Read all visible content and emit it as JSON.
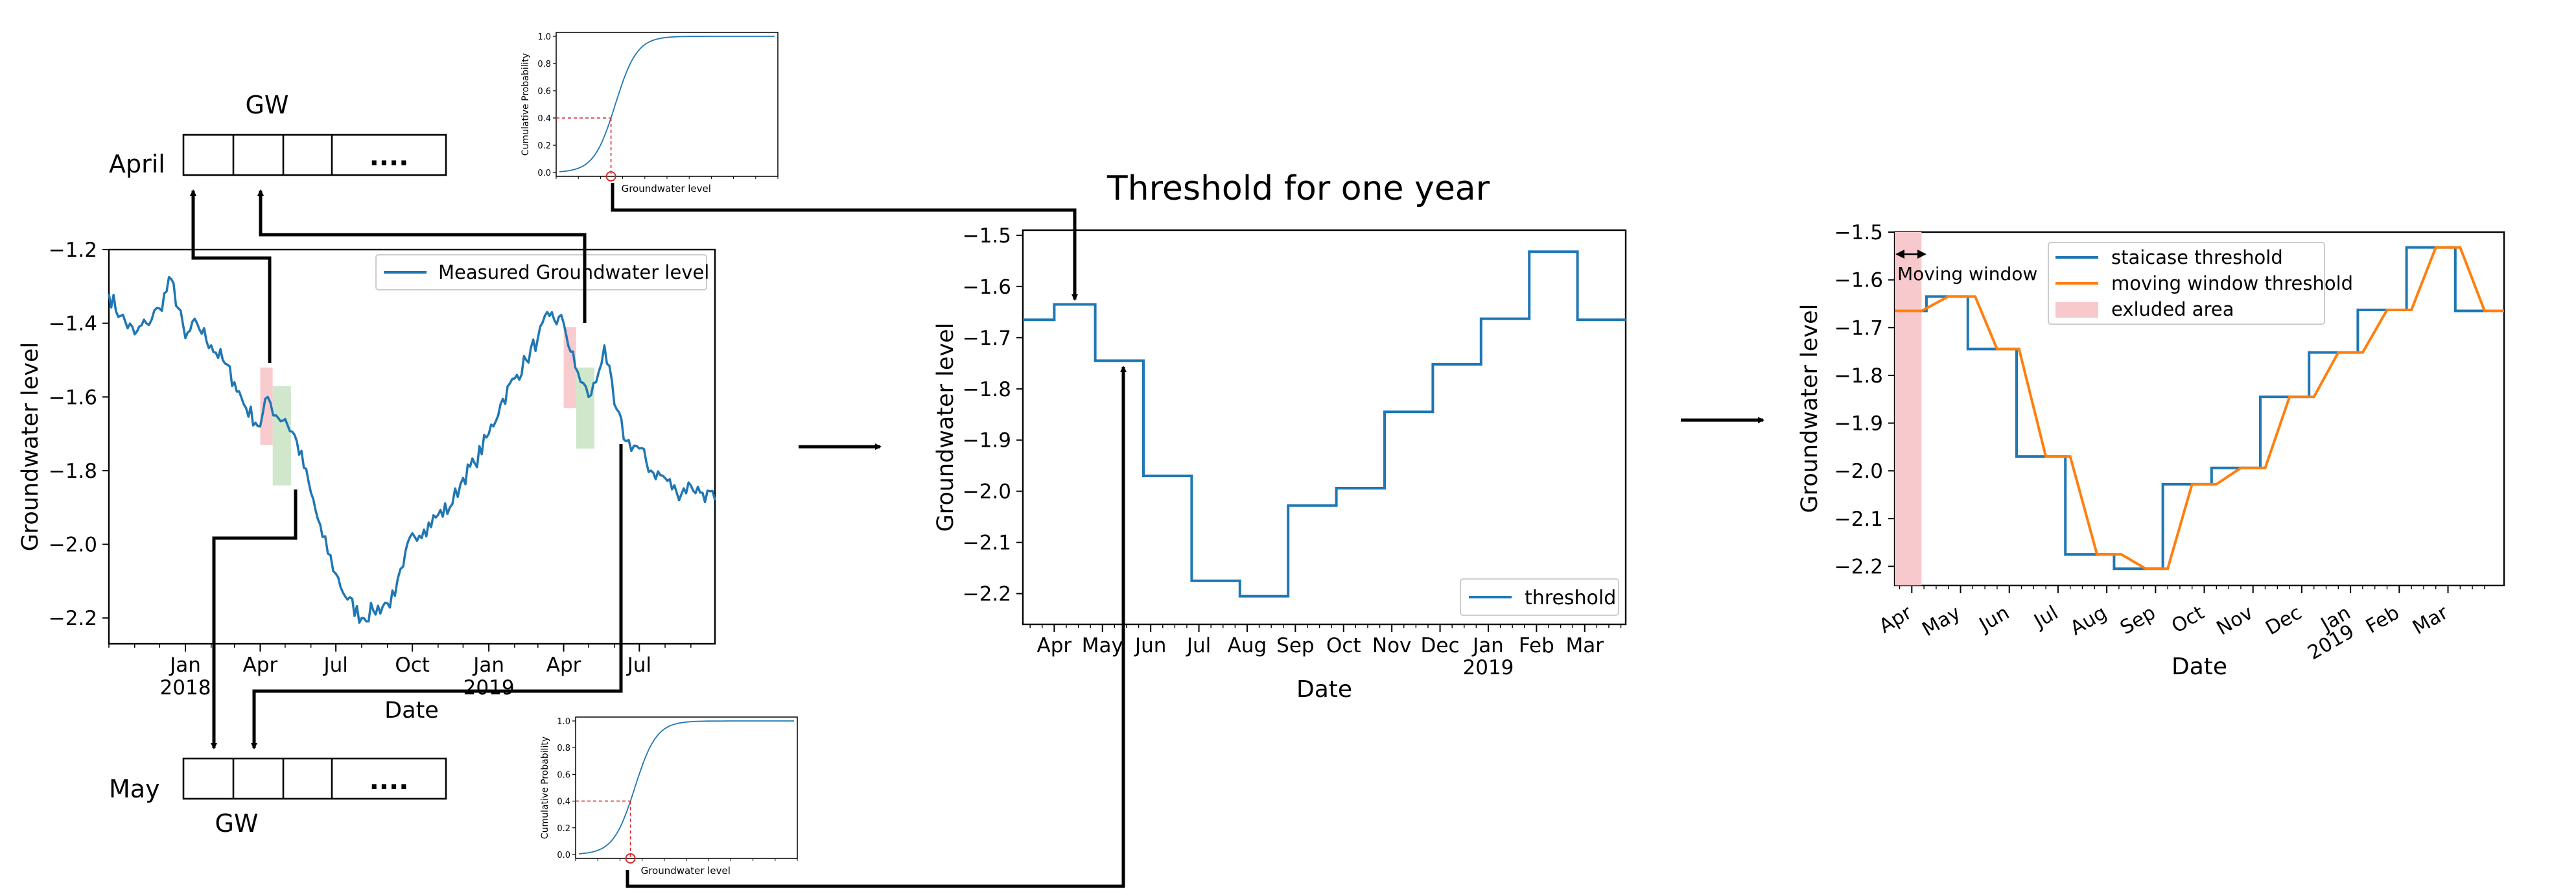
{
  "colors": {
    "blue": "#1f77b4",
    "orange": "#ff7f0e",
    "pink": "#f8c9cc",
    "green": "#cde6c8",
    "red": "#d62728",
    "black": "#000000"
  },
  "labels": {
    "april": "April",
    "may": "May",
    "gw_top": "GW",
    "gw_bottom": "GW",
    "dots": "....",
    "cdf_ylabel": "Cumulative Probability",
    "cdf_xlabel": "Groundwater level"
  },
  "cdf": {
    "yticks": [
      "0.0",
      "0.2",
      "0.4",
      "0.6",
      "0.8",
      "1.0"
    ],
    "marker_level": 0.4
  },
  "chart_data": [
    {
      "id": "measured",
      "type": "line",
      "legend": [
        "Measured Groundwater level"
      ],
      "xlabel": "Date",
      "ylabel": "Groundwater level",
      "ylim": [
        -2.27,
        -1.2
      ],
      "yticks": [
        -2.2,
        -2.0,
        -1.8,
        -1.6,
        -1.4,
        -1.2
      ],
      "ytick_labels": [
        "−2.2",
        "−2.0",
        "−1.8",
        "−1.6",
        "−1.4",
        "−1.2"
      ],
      "xlim": [
        "2017-10-01",
        "2019-09-30"
      ],
      "xticks": [
        {
          "date": "2018-01-01",
          "label": "Jan",
          "label2": "2018"
        },
        {
          "date": "2018-04-01",
          "label": "Apr"
        },
        {
          "date": "2018-07-01",
          "label": "Jul"
        },
        {
          "date": "2018-10-01",
          "label": "Oct"
        },
        {
          "date": "2019-01-01",
          "label": "Jan",
          "label2": "2019"
        },
        {
          "date": "2019-04-01",
          "label": "Apr"
        },
        {
          "date": "2019-07-01",
          "label": "Jul"
        }
      ],
      "series": [
        {
          "name": "Measured Groundwater level",
          "x": [
            "2017-10-01",
            "2017-10-15",
            "2017-11-01",
            "2017-11-15",
            "2017-12-01",
            "2017-12-15",
            "2018-01-01",
            "2018-01-15",
            "2018-02-01",
            "2018-02-15",
            "2018-03-01",
            "2018-03-15",
            "2018-04-01",
            "2018-04-10",
            "2018-04-20",
            "2018-05-01",
            "2018-05-15",
            "2018-06-01",
            "2018-06-15",
            "2018-07-01",
            "2018-07-15",
            "2018-08-01",
            "2018-08-15",
            "2018-09-01",
            "2018-09-10",
            "2018-09-20",
            "2018-10-01",
            "2018-10-15",
            "2018-11-01",
            "2018-11-15",
            "2018-12-01",
            "2018-12-15",
            "2019-01-01",
            "2019-01-15",
            "2019-02-01",
            "2019-02-15",
            "2019-03-01",
            "2019-03-15",
            "2019-04-01",
            "2019-04-15",
            "2019-05-01",
            "2019-05-10",
            "2019-05-20",
            "2019-06-01",
            "2019-06-15",
            "2019-07-01",
            "2019-07-15",
            "2019-08-01",
            "2019-08-15",
            "2019-09-01",
            "2019-09-15",
            "2019-09-30"
          ],
          "values": [
            -1.32,
            -1.38,
            -1.43,
            -1.4,
            -1.36,
            -1.28,
            -1.44,
            -1.4,
            -1.46,
            -1.5,
            -1.56,
            -1.63,
            -1.68,
            -1.6,
            -1.65,
            -1.66,
            -1.72,
            -1.86,
            -1.98,
            -2.08,
            -2.15,
            -2.2,
            -2.18,
            -2.16,
            -2.14,
            -2.06,
            -1.97,
            -1.96,
            -1.92,
            -1.9,
            -1.82,
            -1.78,
            -1.7,
            -1.62,
            -1.55,
            -1.5,
            -1.44,
            -1.38,
            -1.4,
            -1.52,
            -1.6,
            -1.56,
            -1.46,
            -1.62,
            -1.72,
            -1.74,
            -1.8,
            -1.82,
            -1.86,
            -1.84,
            -1.86,
            -1.88
          ]
        }
      ],
      "highlights": [
        {
          "kind": "excluded",
          "x": [
            "2018-04-01",
            "2018-04-16"
          ],
          "y": [
            -1.73,
            -1.52
          ]
        },
        {
          "kind": "window",
          "x": [
            "2018-04-16",
            "2018-05-08"
          ],
          "y": [
            -1.84,
            -1.57
          ]
        },
        {
          "kind": "excluded",
          "x": [
            "2019-04-01",
            "2019-04-16"
          ],
          "y": [
            -1.63,
            -1.41
          ]
        },
        {
          "kind": "window",
          "x": [
            "2019-04-16",
            "2019-05-08"
          ],
          "y": [
            -1.74,
            -1.52
          ]
        }
      ]
    },
    {
      "id": "threshold",
      "type": "line",
      "title": "Threshold for one year",
      "legend": [
        "threshold"
      ],
      "xlabel": "Date",
      "ylabel": "Groundwater level",
      "ylim": [
        -2.26,
        -1.49
      ],
      "yticks": [
        -2.2,
        -2.1,
        -2.0,
        -1.9,
        -1.8,
        -1.7,
        -1.6,
        -1.5
      ],
      "ytick_labels": [
        "−2.2",
        "−2.1",
        "−2.0",
        "−1.9",
        "−1.8",
        "−1.7",
        "−1.6",
        "−1.5"
      ],
      "xlim": [
        0,
        12.5
      ],
      "xticks": [
        {
          "x": 0.65,
          "label": "Apr"
        },
        {
          "x": 1.65,
          "label": "May"
        },
        {
          "x": 2.65,
          "label": "Jun"
        },
        {
          "x": 3.65,
          "label": "Jul"
        },
        {
          "x": 4.65,
          "label": "Aug"
        },
        {
          "x": 5.65,
          "label": "Sep"
        },
        {
          "x": 6.65,
          "label": "Oct"
        },
        {
          "x": 7.65,
          "label": "Nov"
        },
        {
          "x": 8.65,
          "label": "Dec"
        },
        {
          "x": 9.65,
          "label": "Jan",
          "label2": "2019"
        },
        {
          "x": 10.65,
          "label": "Feb"
        },
        {
          "x": 11.65,
          "label": "Mar"
        }
      ],
      "series": [
        {
          "name": "threshold",
          "step_edges": [
            0,
            0.65,
            1.5,
            2.5,
            3.5,
            4.5,
            5.5,
            6.5,
            7.5,
            8.5,
            9.5,
            10.5,
            11.5,
            12.5
          ],
          "values": [
            -1.665,
            -1.635,
            -1.745,
            -1.97,
            -2.175,
            -2.205,
            -2.028,
            -1.994,
            -1.845,
            -1.752,
            -1.663,
            -1.532,
            -1.665
          ]
        }
      ]
    },
    {
      "id": "moving",
      "type": "line",
      "legend": [
        "staicase threshold",
        "moving window threshold",
        "exluded area"
      ],
      "annotation": "Moving window",
      "xlabel": "Date",
      "ylabel": "Groundwater level",
      "ylim": [
        -2.24,
        -1.5
      ],
      "yticks": [
        -2.2,
        -2.1,
        -2.0,
        -1.9,
        -1.8,
        -1.7,
        -1.6,
        -1.5
      ],
      "ytick_labels": [
        "−2.2",
        "−2.1",
        "−2.0",
        "−1.9",
        "−1.8",
        "−1.7",
        "−1.6",
        "−1.5"
      ],
      "xlim": [
        0,
        12.5
      ],
      "xticks": [
        {
          "x": 0.35,
          "label": "Apr"
        },
        {
          "x": 1.35,
          "label": "May"
        },
        {
          "x": 2.35,
          "label": "Jun"
        },
        {
          "x": 3.35,
          "label": "Jul"
        },
        {
          "x": 4.35,
          "label": "Aug"
        },
        {
          "x": 5.35,
          "label": "Sep"
        },
        {
          "x": 6.35,
          "label": "Oct"
        },
        {
          "x": 7.35,
          "label": "Nov"
        },
        {
          "x": 8.35,
          "label": "Dec"
        },
        {
          "x": 9.35,
          "label": "Jan",
          "label2": "2019"
        },
        {
          "x": 10.35,
          "label": "Feb"
        },
        {
          "x": 11.35,
          "label": "Mar"
        }
      ],
      "excluded_x": [
        0,
        0.55
      ],
      "series": [
        {
          "name": "staicase threshold",
          "step_edges": [
            0,
            0.65,
            1.5,
            2.5,
            3.5,
            4.5,
            5.5,
            6.5,
            7.5,
            8.5,
            9.5,
            10.5,
            11.5,
            12.5
          ],
          "values": [
            -1.665,
            -1.635,
            -1.745,
            -1.97,
            -2.175,
            -2.205,
            -2.028,
            -1.994,
            -1.845,
            -1.752,
            -1.663,
            -1.532,
            -1.665
          ]
        },
        {
          "name": "moving window threshold",
          "x": [
            0,
            0.55,
            1.1,
            1.65,
            2.1,
            2.55,
            3.1,
            3.6,
            4.15,
            4.65,
            5.15,
            5.6,
            6.1,
            6.6,
            7.1,
            7.6,
            8.1,
            8.6,
            9.1,
            9.6,
            10.1,
            10.6,
            11.1,
            11.6,
            12.1,
            12.5
          ],
          "values": [
            -1.665,
            -1.665,
            -1.635,
            -1.635,
            -1.745,
            -1.745,
            -1.97,
            -1.97,
            -2.175,
            -2.175,
            -2.205,
            -2.205,
            -2.028,
            -2.028,
            -1.994,
            -1.994,
            -1.845,
            -1.845,
            -1.752,
            -1.752,
            -1.663,
            -1.663,
            -1.532,
            -1.532,
            -1.665,
            -1.665
          ]
        }
      ]
    }
  ]
}
